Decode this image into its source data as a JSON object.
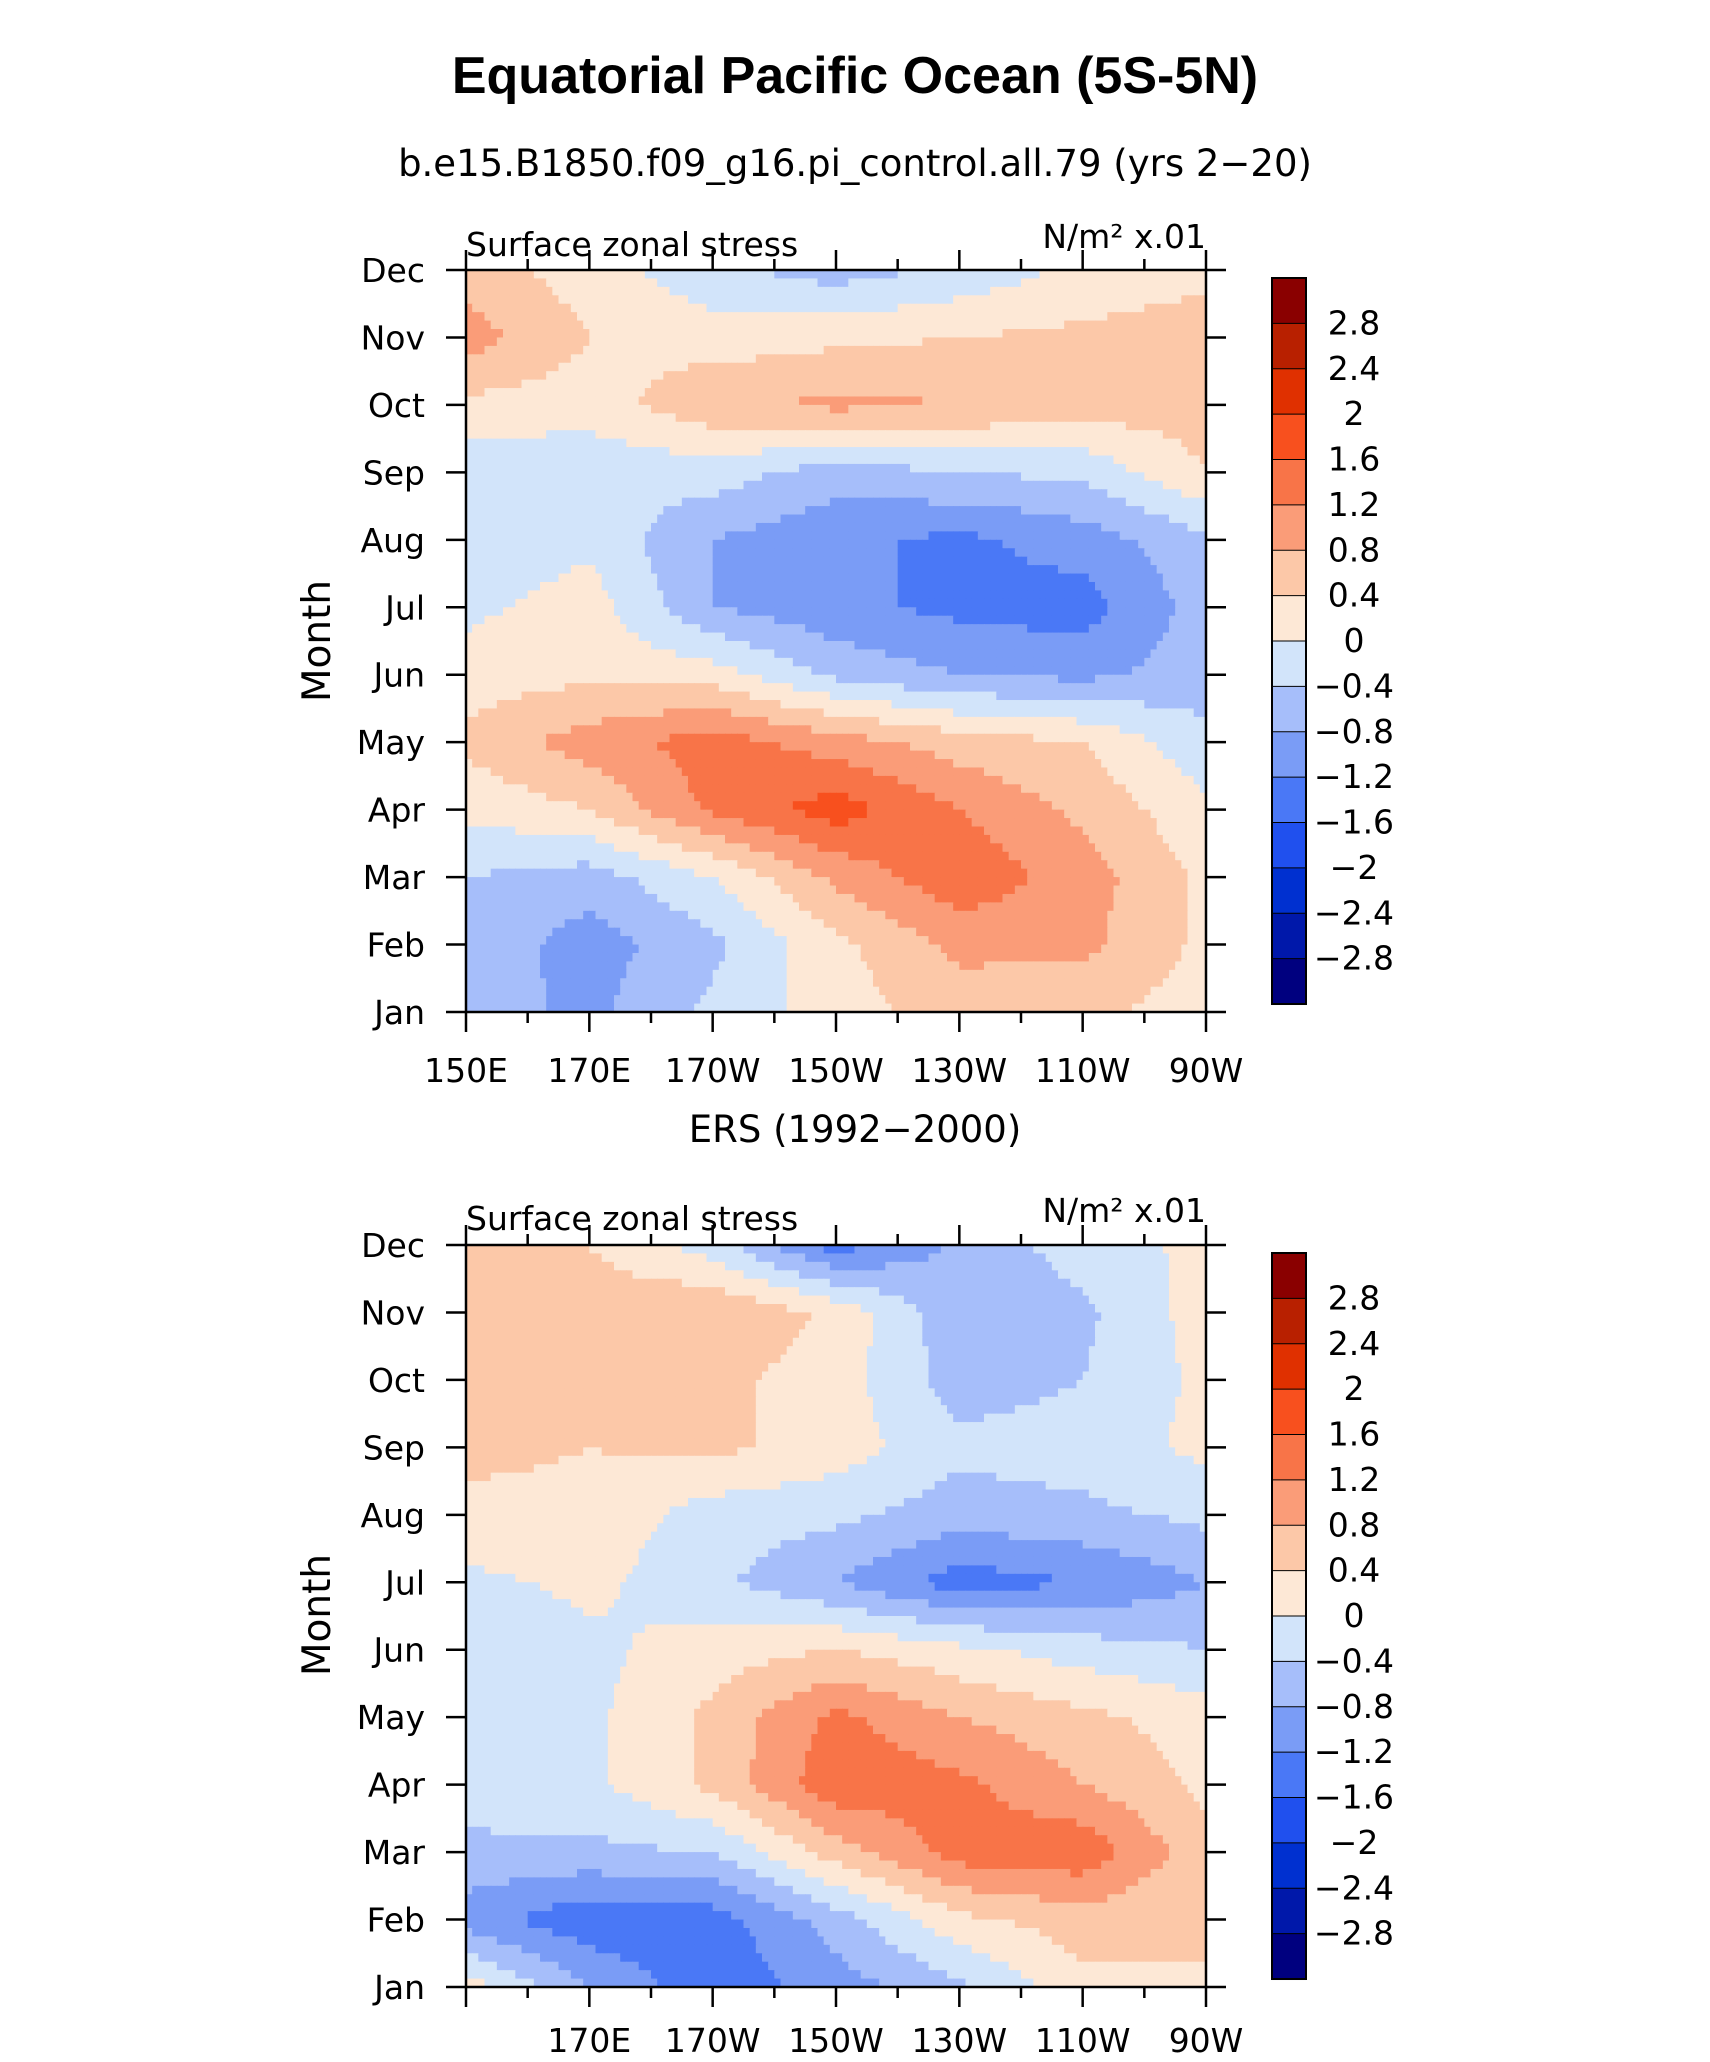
{
  "figure_title": "Equatorial Pacific Ocean (5S-5N)",
  "colors": {
    "levels": [
      "#00007f",
      "#0018aa",
      "#0030d0",
      "#2050ee",
      "#4a78f6",
      "#7a9cf6",
      "#a6befa",
      "#d2e4fa",
      "#fde8d6",
      "#fcc8a8",
      "#fa9c78",
      "#f87448",
      "#f8501e",
      "#e03000",
      "#b82000",
      "#8a0000"
    ]
  },
  "chart_data": [
    {
      "type": "heatmap",
      "title": "b.e15.B1850.f09_g16.pi_control.all.79 (yrs 2−20)",
      "left_label": "Surface zonal stress",
      "right_label": "N/m² x.01",
      "ylabel": "Month",
      "xlabel": "",
      "x_ticks": [
        "150E",
        "170E",
        "170W",
        "150W",
        "130W",
        "110W",
        "90W"
      ],
      "x_range": [
        150,
        270
      ],
      "y_ticks": [
        "Jan",
        "Feb",
        "Mar",
        "Apr",
        "May",
        "Jun",
        "Jul",
        "Aug",
        "Sep",
        "Oct",
        "Nov",
        "Dec"
      ],
      "colorbar_labels": [
        "2.8",
        "2.4",
        "2",
        "1.6",
        "1.2",
        "0.8",
        "0.4",
        "0",
        "−0.4",
        "−0.8",
        "−1.2",
        "−1.6",
        "−2",
        "−2.4",
        "−2.8"
      ],
      "contour_levels": [
        -2.8,
        -2.4,
        -2,
        -1.6,
        -1.2,
        -0.8,
        -0.4,
        0,
        0.4,
        0.8,
        1.2,
        1.6,
        2,
        2.4,
        2.8
      ],
      "units": "N/m2 x.01",
      "lon_points": [
        150,
        170,
        190,
        210,
        230,
        250,
        270
      ],
      "values": [
        [
          -0.6,
          -0.9,
          -0.3,
          0.2,
          0.6,
          0.5,
          0.2
        ],
        [
          -0.5,
          -1.0,
          -0.5,
          0.3,
          0.9,
          0.9,
          0.3
        ],
        [
          -0.4,
          -0.6,
          0.0,
          0.9,
          1.5,
          1.0,
          0.3
        ],
        [
          0.1,
          0.4,
          1.3,
          1.8,
          1.2,
          0.7,
          0.1
        ],
        [
          0.5,
          1.0,
          1.4,
          1.0,
          0.6,
          0.4,
          -0.3
        ],
        [
          0.2,
          0.3,
          0.2,
          -0.5,
          -0.8,
          -0.9,
          -0.6
        ],
        [
          -0.1,
          0.2,
          -0.8,
          -1.1,
          -1.3,
          -1.4,
          -0.6
        ],
        [
          -0.3,
          -0.1,
          -0.8,
          -1.1,
          -1.3,
          -1.0,
          -0.5
        ],
        [
          -0.3,
          -0.3,
          -0.2,
          -0.6,
          -0.4,
          -0.3,
          0.4
        ],
        [
          0.3,
          0.2,
          0.7,
          0.9,
          0.8,
          0.6,
          0.6
        ],
        [
          1.0,
          0.4,
          0.2,
          0.3,
          0.4,
          0.5,
          0.6
        ],
        [
          0.6,
          0.2,
          -0.3,
          -0.6,
          -0.3,
          0.1,
          0.3
        ]
      ]
    },
    {
      "type": "heatmap",
      "title": "ERS (1992−2000)",
      "left_label": "Surface zonal stress",
      "right_label": "N/m² x.01",
      "ylabel": "Month",
      "xlabel": "",
      "x_ticks": [
        "170E",
        "170W",
        "150W",
        "130W",
        "110W",
        "90W"
      ],
      "x_range": [
        150,
        270
      ],
      "y_ticks": [
        "Jan",
        "Feb",
        "Mar",
        "Apr",
        "May",
        "Jun",
        "Jul",
        "Aug",
        "Sep",
        "Oct",
        "Nov",
        "Dec"
      ],
      "colorbar_labels": [
        "2.8",
        "2.4",
        "2",
        "1.6",
        "1.2",
        "0.8",
        "0.4",
        "0",
        "−0.4",
        "−0.8",
        "−1.2",
        "−1.6",
        "−2",
        "−2.4",
        "−2.8"
      ],
      "contour_levels": [
        -2.8,
        -2.4,
        -2,
        -1.6,
        -1.2,
        -0.8,
        -0.4,
        0,
        0.4,
        0.8,
        1.2,
        1.6,
        2,
        2.4,
        2.8
      ],
      "units": "N/m2 x.01",
      "lon_points": [
        150,
        170,
        190,
        210,
        230,
        250,
        270
      ],
      "values": [
        [
          0.2,
          -0.8,
          -1.5,
          -1.0,
          -0.5,
          0.3,
          0.4
        ],
        [
          -1.0,
          -1.5,
          -1.4,
          -0.6,
          0.3,
          0.6,
          0.4
        ],
        [
          -0.5,
          -0.5,
          -0.4,
          0.6,
          1.4,
          1.5,
          0.5
        ],
        [
          -0.2,
          -0.1,
          0.5,
          1.5,
          1.3,
          0.8,
          0.3
        ],
        [
          -0.3,
          -0.1,
          0.5,
          1.3,
          0.8,
          0.5,
          0.2
        ],
        [
          -0.4,
          -0.1,
          0.2,
          0.4,
          0.1,
          -0.2,
          -0.4
        ],
        [
          -0.1,
          0.1,
          -0.3,
          -0.8,
          -1.4,
          -1.2,
          -0.8
        ],
        [
          0.3,
          0.3,
          -0.2,
          -0.3,
          -0.6,
          -0.5,
          -0.3
        ],
        [
          0.5,
          0.4,
          0.5,
          0.2,
          -0.3,
          -0.2,
          0.1
        ],
        [
          0.4,
          0.5,
          0.5,
          0.2,
          -0.6,
          -0.4,
          0.1
        ],
        [
          0.5,
          0.6,
          0.8,
          0.3,
          -0.7,
          -0.5,
          0.2
        ],
        [
          0.5,
          0.4,
          -0.2,
          -1.4,
          -0.7,
          -0.2,
          0.1
        ]
      ]
    }
  ]
}
